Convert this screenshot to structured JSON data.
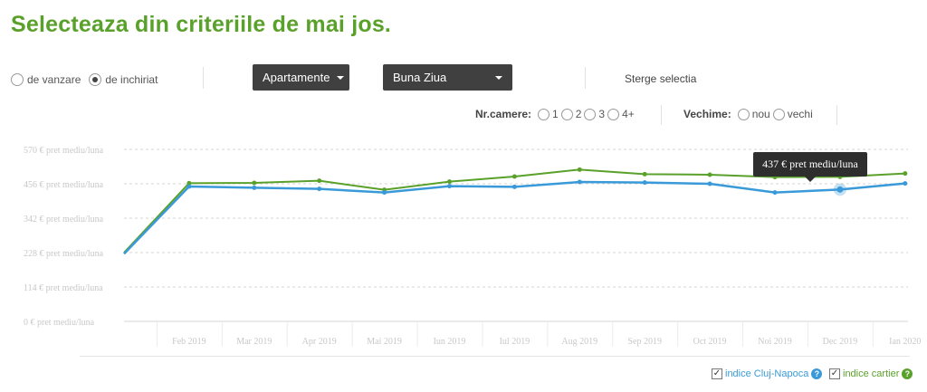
{
  "page_title": "Selecteaza din criteriile de mai jos.",
  "listing_type": {
    "options": [
      {
        "label": "de vanzare",
        "checked": false
      },
      {
        "label": "de inchiriat",
        "checked": true
      }
    ]
  },
  "property_dropdown": {
    "value": "Apartamente",
    "icon": "caret-down-icon"
  },
  "area_dropdown": {
    "value": "Buna Ziua",
    "icon": "caret-down-icon"
  },
  "clear_link": "Sterge selectia",
  "rooms_filter": {
    "title": "Nr.camere:",
    "options": [
      "1",
      "2",
      "3",
      "4+"
    ]
  },
  "age_filter": {
    "title": "Vechime:",
    "options": [
      "nou",
      "vechi"
    ]
  },
  "tooltip": {
    "text": "437 € pret mediu/luna"
  },
  "legend": {
    "items": [
      {
        "label": "indice Cluj-Napoca",
        "color": "#3a9ad9",
        "checked": true,
        "check": "✓",
        "help": "?"
      },
      {
        "label": "indice cartier",
        "color": "#5aa12b",
        "checked": true,
        "check": "✓",
        "help": "?"
      }
    ]
  },
  "chart_data": {
    "type": "line",
    "categories": [
      "",
      "Feb 2019",
      "Mar 2019",
      "Apr 2019",
      "Mai 2019",
      "Iun 2019",
      "Iul 2019",
      "Aug 2019",
      "Sep 2019",
      "Oct 2019",
      "Noi 2019",
      "Dec 2019",
      "Ian 2020"
    ],
    "x_tick_labels": [
      "Feb 2019",
      "Mar 2019",
      "Apr 2019",
      "Mai 2019",
      "Iun 2019",
      "Iul 2019",
      "Aug 2019",
      "Sep 2019",
      "Oct 2019",
      "Noi 2019",
      "Dec 2019",
      "Ian 2020"
    ],
    "y_ticks": [
      0,
      114,
      228,
      342,
      456,
      570
    ],
    "y_tick_labels": [
      "0 € pret mediu/luna",
      "114 € pret mediu/luna",
      "228 € pret mediu/luna",
      "342 € pret mediu/luna",
      "456 € pret mediu/luna",
      "570 € pret mediu/luna"
    ],
    "ylim": [
      0,
      570
    ],
    "grid": true,
    "highlight": {
      "series": 0,
      "index": 11
    },
    "series": [
      {
        "name": "indice Cluj-Napoca",
        "color": "#3a9ad9",
        "values": [
          224,
          447,
          443,
          439,
          427,
          448,
          446,
          462,
          460,
          456,
          427,
          437,
          457
        ]
      },
      {
        "name": "indice cartier",
        "color": "#5aa12b",
        "values": [
          228,
          458,
          459,
          466,
          436,
          463,
          480,
          503,
          488,
          486,
          478,
          479,
          490
        ]
      }
    ]
  }
}
